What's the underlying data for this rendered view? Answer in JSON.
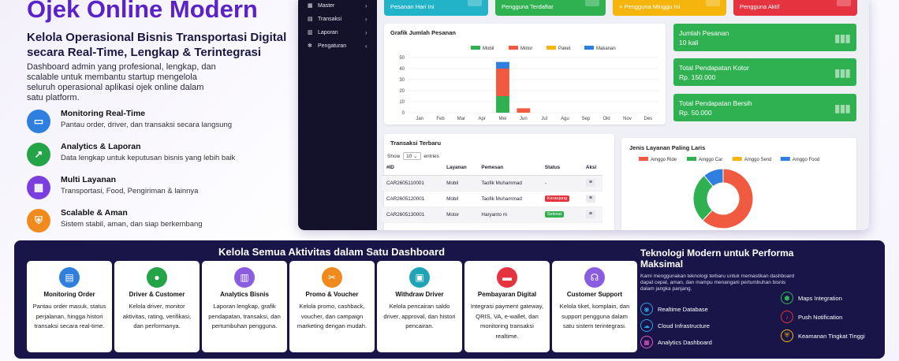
{
  "hero": {
    "title": "Ojek Online Modern",
    "subtitle": "Kelola Operasional Bisnis Transportasi Digital secara Real-Time, Lengkap & Terintegrasi",
    "description": "Dashboard admin yang profesional, lengkap, dan scalable untuk membantu startup mengelola seluruh operasional aplikasi ojek online dalam satu platform.",
    "features": [
      {
        "title": "Monitoring Real-Time",
        "desc": "Pantau order, driver, dan transaksi secara langsung",
        "icon": "monitor-icon",
        "color": "#2f7fe0"
      },
      {
        "title": "Analytics & Laporan",
        "desc": "Data lengkap untuk keputusan bisnis yang lebih baik",
        "icon": "chart-icon",
        "color": "#22a447"
      },
      {
        "title": "Multi Layanan",
        "desc": "Transportasi, Food, Pengiriman & lainnya",
        "icon": "grid-icon",
        "color": "#7b3fe0"
      },
      {
        "title": "Scalable & Aman",
        "desc": "Sistem stabil, aman, dan siap berkembang",
        "icon": "shield-icon",
        "color": "#f08a1c"
      }
    ]
  },
  "dashboard": {
    "sidebar": [
      {
        "label": "Master",
        "icon": "grid-icon",
        "chevron": "›"
      },
      {
        "label": "Transaksi",
        "icon": "cart-icon",
        "chevron": "›"
      },
      {
        "label": "Laporan",
        "icon": "report-icon",
        "chevron": "›"
      },
      {
        "label": "Pengaturan",
        "icon": "gear-icon",
        "chevron": "‹"
      }
    ],
    "stats": [
      {
        "label": "Pesanan Hari Ini",
        "color": "#23b3c9"
      },
      {
        "label": "Pengguna Terdaftar",
        "color": "#2fb152"
      },
      {
        "label": "+ Pengguna Minggu Ini",
        "color": "#f5b50c"
      },
      {
        "label": "Pengguna Aktif",
        "color": "#e5333f"
      }
    ],
    "summary": [
      {
        "label": "Jumlah Pesanan",
        "value": "10 kali"
      },
      {
        "label": "Total Pendapatan Kotor",
        "value": "Rp. 150.000"
      },
      {
        "label": "Total Pendapatan Bersih",
        "value": "Rp. 50.000"
      }
    ],
    "table": {
      "title": "Transaksi Terbaru",
      "show_label": "Show",
      "show_value": "10",
      "entries_label": "entries",
      "headers": [
        "#ID",
        "Layanan",
        "Pemesan",
        "Status",
        "Aksi"
      ],
      "rows": [
        {
          "id": "CAR2605110001",
          "layanan": "Mobil",
          "pemesan": "Taofik Muhammad",
          "status": "-",
          "status_color": ""
        },
        {
          "id": "CAR2605120001",
          "layanan": "Mobil",
          "pemesan": "Taofik Muhammad",
          "status": "Keranjang",
          "status_color": "#e5333f"
        },
        {
          "id": "CAR2605130001",
          "layanan": "Motor",
          "pemesan": "Haryanto m",
          "status": "Selesai",
          "status_color": "#2fb152"
        }
      ],
      "aksi_glyph": "≡"
    }
  },
  "chart_data": [
    {
      "type": "bar",
      "title": "Grafik Jumlah Pesanan",
      "categories": [
        "Jan",
        "Feb",
        "Mar",
        "Apr",
        "Mei",
        "Jun",
        "Jul",
        "Agu",
        "Sep",
        "Okt",
        "Nov",
        "Des"
      ],
      "series": [
        {
          "name": "Mobil",
          "color": "#2fb152",
          "values": [
            0,
            0,
            0,
            0,
            15,
            0,
            0,
            0,
            0,
            0,
            0,
            0
          ]
        },
        {
          "name": "Motor",
          "color": "#f05a40",
          "values": [
            0,
            0,
            0,
            0,
            25,
            4,
            0,
            0,
            0,
            0,
            0,
            0
          ]
        },
        {
          "name": "Paket",
          "color": "#f5b50c",
          "values": [
            0,
            0,
            0,
            0,
            0,
            0,
            0,
            0,
            0,
            0,
            0,
            0
          ]
        },
        {
          "name": "Makanan",
          "color": "#2f7fe0",
          "values": [
            0,
            0,
            0,
            0,
            6,
            0,
            0,
            0,
            0,
            0,
            0,
            0
          ]
        }
      ],
      "stacked": true,
      "ylim": [
        0,
        50
      ],
      "yticks": [
        0,
        10,
        20,
        30,
        40,
        50
      ],
      "grid": true,
      "legend": "top-center"
    },
    {
      "type": "pie",
      "title": "Jenis Layanan Paling Laris",
      "labels": [
        "Amggo Ride",
        "Amggo Car",
        "Amggo Send",
        "Amggo Food"
      ],
      "colors": [
        "#f05a40",
        "#2fb152",
        "#f5b50c",
        "#2f7fe0"
      ],
      "values": [
        62,
        27,
        0,
        11
      ],
      "donut": true,
      "legend": "top"
    }
  ],
  "bottom": {
    "title": "Kelola Semua Aktivitas dalam Satu Dashboard",
    "cards": [
      {
        "title": "Monitoring Order",
        "desc": "Pantau order masuk, status perjalanan, hingga histori transaksi secara real-time.",
        "icon": "clipboard-icon",
        "color": "#2f7fe0"
      },
      {
        "title": "Driver & Customer",
        "desc": "Kelola driver, monitor aktivitas, rating, verifikasi, dan performanya.",
        "icon": "user-icon",
        "color": "#22a447"
      },
      {
        "title": "Analytics Bisnis",
        "desc": "Laporan lengkap, grafik pendapatan, transaksi, dan pertumbuhan pengguna.",
        "icon": "bar-chart-icon",
        "color": "#8a5ce0"
      },
      {
        "title": "Promo & Voucher",
        "desc": "Kelola promo, cashback, voucher, dan campaign marketing dengan mudah.",
        "icon": "ticket-icon",
        "color": "#f08a1c"
      },
      {
        "title": "Withdraw Driver",
        "desc": "Kelola pencairan saldo driver, approval, dan histori pencairan.",
        "icon": "wallet-icon",
        "color": "#1fa3b8"
      },
      {
        "title": "Pembayaran Digital",
        "desc": "Integrasi payment gateway, QRIS, VA, e-wallet, dan monitoring transaksi realtime.",
        "icon": "card-icon",
        "color": "#e5333f"
      },
      {
        "title": "Customer Support",
        "desc": "Kelola tiket, komplain, dan support pengguna dalam satu sistem terintegrasi.",
        "icon": "headset-icon",
        "color": "#8a5ce0"
      }
    ],
    "tech": {
      "title": "Teknologi Modern untuk Performa Maksimal",
      "desc": "Kami menggunakan teknologi terbaru untuk memastikan dashboard dapat cepat, aman, dan mampu menangani pertumbuhan bisnis dalam jangka panjang.",
      "left": [
        {
          "label": "Realtime Database",
          "icon": "database-icon",
          "glyph": "◉",
          "color": "#2f9fe0"
        },
        {
          "label": "Cloud Infrastructure",
          "icon": "cloud-icon",
          "glyph": "☁",
          "color": "#2f9fe0"
        },
        {
          "label": "Analytics Dashboard",
          "icon": "dashboard-icon",
          "glyph": "▦",
          "color": "#e05ac8"
        }
      ],
      "right": [
        {
          "label": "Maps Integration",
          "icon": "map-pin-icon",
          "glyph": "⬢",
          "color": "#2fb152"
        },
        {
          "label": "Push Notification",
          "icon": "bell-icon",
          "glyph": "♪",
          "color": "#e5333f"
        },
        {
          "label": "Keamanan Tingkat Tinggi",
          "icon": "lock-icon",
          "glyph": "⛨",
          "color": "#f5b50c"
        }
      ]
    }
  }
}
